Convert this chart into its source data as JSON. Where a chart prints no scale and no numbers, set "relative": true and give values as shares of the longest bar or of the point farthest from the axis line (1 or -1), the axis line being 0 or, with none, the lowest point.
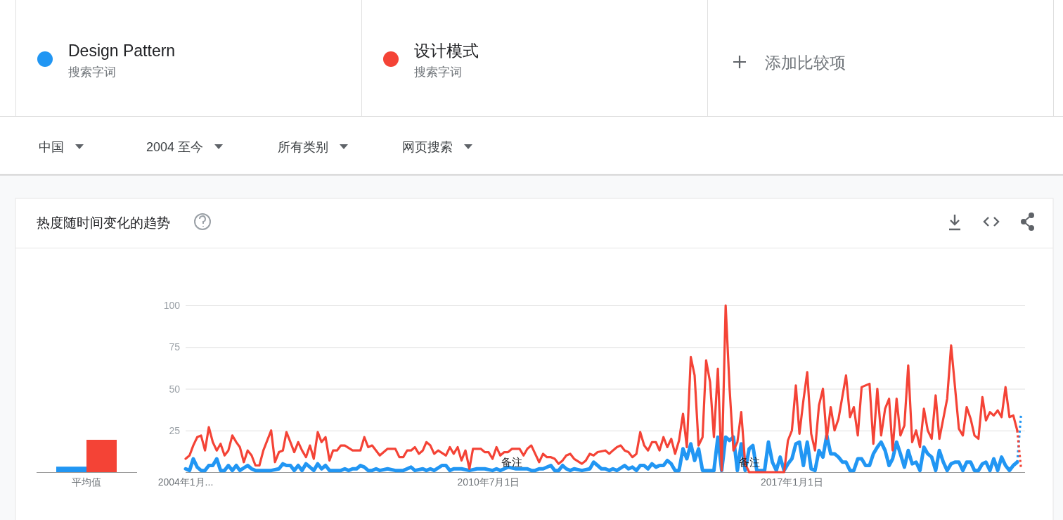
{
  "chart_data": [
    {
      "type": "other",
      "annotations": [
        "搜索字词",
        "搜索字词",
        "添加比较项",
        "中国",
        "2004 至今",
        "所有类别",
        "网页搜索"
      ]
    },
    {
      "type": "bar",
      "categories": [
        "平均值"
      ],
      "relative": true,
      "series": [
        {
          "color": "#2196f3",
          "values": [
            0.17
          ]
        },
        {
          "color": "#f44336",
          "values": [
            1
          ]
        }
      ]
    },
    {
      "type": "line",
      "title": "热度随时间变化的趋势",
      "legend": "top",
      "grid": "y",
      "ylim": [
        0,
        100
      ],
      "yticks": [
        25,
        50,
        75,
        100
      ],
      "xlim": [
        "2004-01",
        "2022-01"
      ],
      "xticks": [
        {
          "value": "2004-01",
          "label": "2004年1月..."
        },
        {
          "value": "2010-07-01",
          "label": "2010年7月1日"
        },
        {
          "value": "2017-01-01",
          "label": "2017年1月1日"
        }
      ],
      "annotations": [
        {
          "text": "备注",
          "x": "2011-01",
          "y": 4
        },
        {
          "text": "备注",
          "x": "2016-02",
          "y": 4
        }
      ],
      "series": [
        {
          "name": "Design Pattern",
          "color": "#2196f3",
          "x": [
            "2004-01",
            "2004-02",
            "2004-03",
            "2004-04",
            "2004-05",
            "2004-06",
            "2004-07",
            "2004-08",
            "2004-09",
            "2004-10",
            "2004-11",
            "2004-12",
            "2005-01",
            "2005-02",
            "2005-03",
            "2005-05",
            "2005-06",
            "2005-07",
            "2005-09",
            "2005-11",
            "2006-01",
            "2006-02",
            "2006-03",
            "2006-04",
            "2006-05",
            "2006-06",
            "2006-07",
            "2006-08",
            "2006-09",
            "2006-10",
            "2006-11",
            "2006-12",
            "2007-01",
            "2007-02",
            "2007-05",
            "2007-06",
            "2007-07",
            "2007-08",
            "2007-09",
            "2007-10",
            "2007-11",
            "2007-12",
            "2008-01",
            "2008-02",
            "2008-03",
            "2008-05",
            "2008-07",
            "2008-09",
            "2008-10",
            "2008-11",
            "2008-12",
            "2009-02",
            "2009-03",
            "2009-04",
            "2009-05",
            "2009-07",
            "2009-08",
            "2009-09",
            "2009-10",
            "2009-12",
            "2010-02",
            "2010-04",
            "2010-06",
            "2010-08",
            "2010-09",
            "2010-10",
            "2010-11",
            "2010-12",
            "2011-02",
            "2011-05",
            "2011-06",
            "2011-07",
            "2011-08",
            "2011-09",
            "2011-11",
            "2011-12",
            "2012-01",
            "2012-02",
            "2012-03",
            "2012-04",
            "2012-05",
            "2012-07",
            "2012-09",
            "2012-10",
            "2012-11",
            "2012-12",
            "2013-01",
            "2013-02",
            "2013-03",
            "2013-04",
            "2013-06",
            "2013-07",
            "2013-08",
            "2013-09",
            "2013-10",
            "2013-11",
            "2013-12",
            "2014-01",
            "2014-02",
            "2014-03",
            "2014-04",
            "2014-05",
            "2014-06",
            "2014-07",
            "2014-08",
            "2014-09",
            "2014-10",
            "2014-11",
            "2014-12",
            "2015-01",
            "2015-02",
            "2015-05",
            "2015-06",
            "2015-07",
            "2015-08",
            "2015-09",
            "2015-10",
            "2015-11",
            "2015-12",
            "2016-01",
            "2016-02",
            "2016-03",
            "2016-04",
            "2016-06",
            "2016-07",
            "2016-08",
            "2016-09",
            "2016-10",
            "2016-11",
            "2016-12",
            "2017-01",
            "2017-02",
            "2017-03",
            "2017-04",
            "2017-05",
            "2017-06",
            "2017-07",
            "2017-08",
            "2017-09",
            "2017-10",
            "2017-11",
            "2017-12",
            "2018-01",
            "2018-02",
            "2018-03",
            "2018-04",
            "2018-05",
            "2018-06",
            "2018-07",
            "2018-08",
            "2018-09",
            "2018-10",
            "2018-11",
            "2018-12",
            "2019-01",
            "2019-02",
            "2019-03",
            "2019-04",
            "2019-05",
            "2019-06",
            "2019-07",
            "2019-08",
            "2019-09",
            "2019-10",
            "2019-11",
            "2019-12",
            "2020-01",
            "2020-02",
            "2020-03",
            "2020-04",
            "2020-05",
            "2020-06",
            "2020-07",
            "2020-08",
            "2020-09",
            "2020-10",
            "2020-11",
            "2020-12",
            "2021-01",
            "2021-02",
            "2021-03",
            "2021-04",
            "2021-05",
            "2021-06",
            "2021-07",
            "2021-08",
            "2021-09",
            "2021-10",
            "2021-11"
          ],
          "values": [
            2,
            1,
            8,
            3,
            1,
            1,
            4,
            4,
            8,
            1,
            1,
            4,
            1,
            4,
            1,
            4,
            2,
            1,
            1,
            1,
            2,
            5,
            4,
            4,
            1,
            4,
            1,
            5,
            3,
            1,
            5,
            2,
            4,
            1,
            1,
            2,
            1,
            2,
            2,
            4,
            3,
            1,
            1,
            2,
            1,
            2,
            1,
            1,
            2,
            3,
            1,
            2,
            1,
            2,
            1,
            4,
            4,
            1,
            2,
            2,
            1,
            2,
            2,
            1,
            2,
            1,
            2,
            3,
            2,
            2,
            1,
            1,
            2,
            2,
            4,
            1,
            1,
            4,
            2,
            1,
            2,
            1,
            2,
            6,
            4,
            2,
            2,
            1,
            2,
            1,
            4,
            2,
            3,
            1,
            4,
            4,
            2,
            5,
            3,
            4,
            4,
            7,
            5,
            1,
            1,
            14,
            8,
            17,
            7,
            14,
            1,
            1,
            21,
            1,
            21,
            19,
            21,
            1,
            17,
            1,
            14,
            16,
            1,
            1,
            18,
            6,
            1,
            9,
            1,
            5,
            8,
            17,
            18,
            4,
            18,
            2,
            1,
            13,
            9,
            22,
            11,
            11,
            9,
            6,
            6,
            1,
            1,
            8,
            8,
            4,
            4,
            11,
            15,
            18,
            13,
            4,
            8,
            18,
            11,
            3,
            13,
            5,
            6,
            1,
            15,
            11,
            9,
            1,
            13,
            6,
            1,
            5,
            6,
            6,
            1,
            6,
            6,
            1,
            1,
            5,
            6,
            1,
            8,
            1,
            9,
            4,
            1,
            4,
            6
          ]
        },
        {
          "name": "设计模式",
          "color": "#f44336",
          "x": [
            "2004-01",
            "2004-02",
            "2004-03",
            "2004-04",
            "2004-05",
            "2004-06",
            "2004-07",
            "2004-08",
            "2004-09",
            "2004-10",
            "2004-11",
            "2004-12",
            "2005-01",
            "2005-02",
            "2005-03",
            "2005-04",
            "2005-05",
            "2005-06",
            "2005-07",
            "2005-08",
            "2005-09",
            "2005-11",
            "2005-12",
            "2006-01",
            "2006-02",
            "2006-03",
            "2006-04",
            "2006-05",
            "2006-06",
            "2006-07",
            "2006-08",
            "2006-09",
            "2006-10",
            "2006-11",
            "2006-12",
            "2007-01",
            "2007-02",
            "2007-03",
            "2007-04",
            "2007-05",
            "2007-06",
            "2007-08",
            "2007-09",
            "2007-10",
            "2007-11",
            "2007-12",
            "2008-01",
            "2008-03",
            "2008-05",
            "2008-07",
            "2008-08",
            "2008-09",
            "2008-10",
            "2008-11",
            "2008-12",
            "2009-01",
            "2009-02",
            "2009-03",
            "2009-04",
            "2009-05",
            "2009-06",
            "2009-08",
            "2009-09",
            "2009-10",
            "2009-11",
            "2009-12",
            "2010-01",
            "2010-02",
            "2010-03",
            "2010-05",
            "2010-06",
            "2010-07",
            "2010-08",
            "2010-09",
            "2010-10",
            "2010-11",
            "2010-12",
            "2011-01",
            "2011-03",
            "2011-04",
            "2011-05",
            "2011-06",
            "2011-08",
            "2011-09",
            "2011-10",
            "2011-11",
            "2011-12",
            "2012-01",
            "2012-02",
            "2012-03",
            "2012-04",
            "2012-05",
            "2012-07",
            "2012-08",
            "2012-09",
            "2012-10",
            "2012-11",
            "2013-01",
            "2013-02",
            "2013-03",
            "2013-04",
            "2013-05",
            "2013-06",
            "2013-07",
            "2013-08",
            "2013-09",
            "2013-10",
            "2013-11",
            "2013-12",
            "2014-01",
            "2014-02",
            "2014-03",
            "2014-04",
            "2014-05",
            "2014-06",
            "2014-07",
            "2014-08",
            "2014-09",
            "2014-10",
            "2014-11",
            "2014-12",
            "2015-01",
            "2015-02",
            "2015-03",
            "2015-04",
            "2015-05",
            "2015-06",
            "2015-07",
            "2015-08",
            "2015-09",
            "2015-10",
            "2015-11",
            "2015-12",
            "2016-01",
            "2016-02",
            "2016-11",
            "2016-12",
            "2017-01",
            "2017-02",
            "2017-03",
            "2017-04",
            "2017-05",
            "2017-06",
            "2017-07",
            "2017-08",
            "2017-09",
            "2017-10",
            "2017-11",
            "2017-12",
            "2018-01",
            "2018-03",
            "2018-04",
            "2018-05",
            "2018-06",
            "2018-07",
            "2018-09",
            "2018-10",
            "2018-11",
            "2018-12",
            "2019-01",
            "2019-02",
            "2019-03",
            "2019-04",
            "2019-05",
            "2019-06",
            "2019-07",
            "2019-08",
            "2019-09",
            "2019-10",
            "2019-11",
            "2019-12",
            "2020-01",
            "2020-02",
            "2020-03",
            "2020-05",
            "2020-06",
            "2020-08",
            "2020-09",
            "2020-10",
            "2020-11",
            "2020-12",
            "2021-01",
            "2021-02",
            "2021-03",
            "2021-04",
            "2021-05",
            "2021-06",
            "2021-07",
            "2021-08",
            "2021-09",
            "2021-10",
            "2021-11"
          ],
          "values": [
            8,
            10,
            16,
            21,
            22,
            13,
            27,
            18,
            13,
            17,
            10,
            13,
            22,
            18,
            15,
            6,
            13,
            10,
            4,
            4,
            13,
            25,
            6,
            12,
            13,
            24,
            18,
            12,
            18,
            13,
            9,
            16,
            8,
            24,
            18,
            21,
            7,
            13,
            13,
            16,
            16,
            13,
            13,
            13,
            21,
            15,
            16,
            10,
            14,
            14,
            9,
            9,
            13,
            13,
            15,
            11,
            13,
            18,
            16,
            11,
            13,
            10,
            15,
            11,
            15,
            7,
            13,
            2,
            14,
            14,
            12,
            12,
            8,
            15,
            10,
            12,
            12,
            14,
            14,
            10,
            14,
            16,
            6,
            11,
            9,
            9,
            8,
            5,
            7,
            10,
            11,
            8,
            5,
            7,
            11,
            10,
            12,
            13,
            11,
            13,
            15,
            16,
            13,
            12,
            9,
            11,
            24,
            16,
            13,
            18,
            18,
            13,
            21,
            15,
            20,
            11,
            19,
            35,
            15,
            69,
            58,
            16,
            21,
            67,
            54,
            21,
            62,
            1,
            100,
            50,
            13,
            18,
            36,
            5,
            0,
            0,
            19,
            25,
            52,
            23,
            43,
            60,
            23,
            13,
            40,
            50,
            20,
            39,
            25,
            32,
            58,
            33,
            39,
            22,
            51,
            53,
            17,
            50,
            22,
            38,
            44,
            13,
            44,
            22,
            28,
            64,
            18,
            25,
            15,
            38,
            25,
            20,
            46,
            20,
            44,
            76,
            26,
            22,
            39,
            32,
            22,
            20,
            45,
            31,
            36,
            34,
            37,
            33,
            51,
            33,
            34,
            25
          ]
        },
        {
          "color": "#2196f3",
          "line_style": "dotted",
          "x": [
            "2021-11",
            "2021-12"
          ],
          "values": [
            6,
            35
          ]
        },
        {
          "color": "#f44336",
          "line_style": "dotted",
          "x": [
            "2021-11",
            "2021-12"
          ],
          "values": [
            25,
            2
          ]
        }
      ]
    }
  ]
}
